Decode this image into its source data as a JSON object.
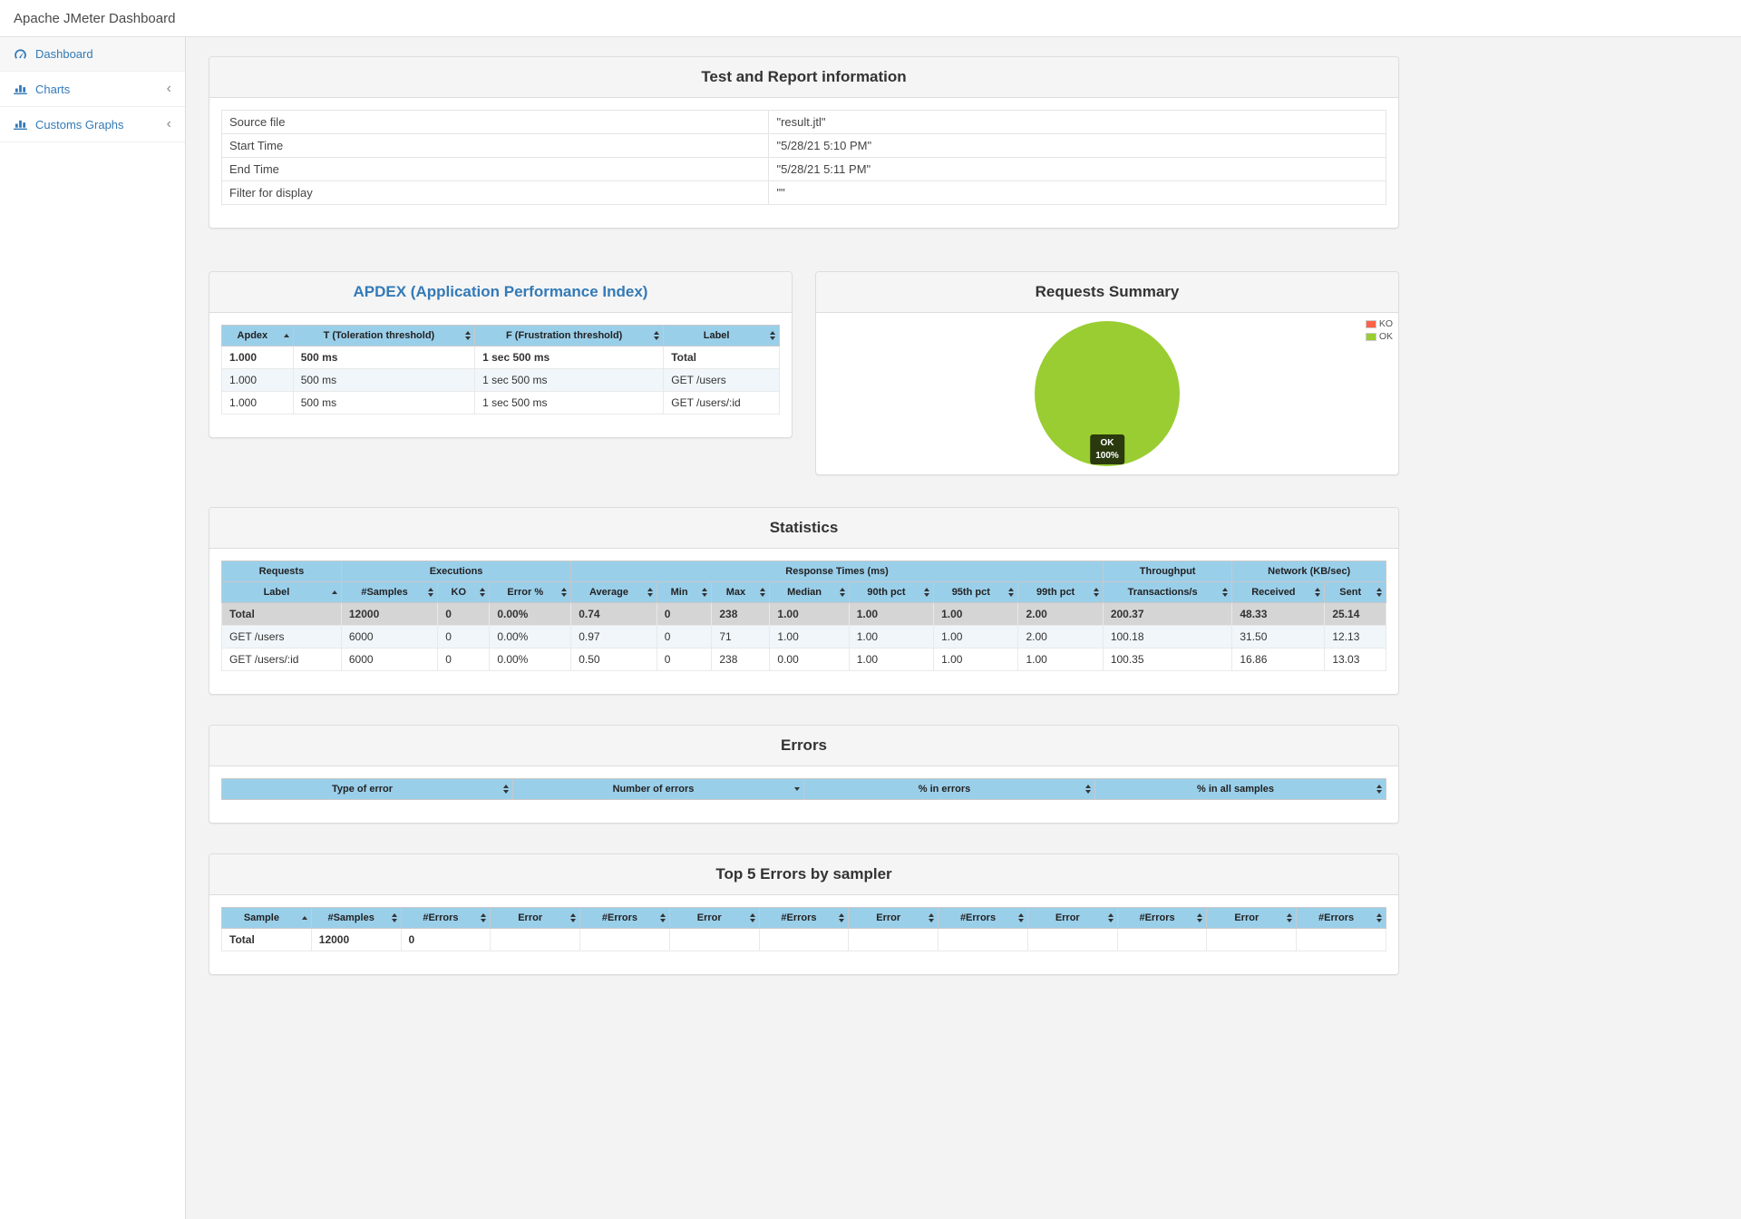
{
  "app": {
    "title": "Apache JMeter Dashboard"
  },
  "sidebar": {
    "items": [
      {
        "label": "Dashboard",
        "icon": "dashboard-icon",
        "active": true
      },
      {
        "label": "Charts",
        "icon": "bar-chart-icon",
        "collapsed": true
      },
      {
        "label": "Customs Graphs",
        "icon": "bar-chart-icon",
        "collapsed": true
      }
    ]
  },
  "test_info": {
    "title": "Test and Report information",
    "rows": [
      [
        "Source file",
        "\"result.jtl\""
      ],
      [
        "Start Time",
        "\"5/28/21 5:10 PM\""
      ],
      [
        "End Time",
        "\"5/28/21 5:11 PM\""
      ],
      [
        "Filter for display",
        "\"\""
      ]
    ]
  },
  "apdex": {
    "title": "APDEX (Application Performance Index)",
    "headers": [
      {
        "label": "Apdex",
        "sort": "asc"
      },
      {
        "label": "T (Toleration threshold)",
        "sort": "both"
      },
      {
        "label": "F (Frustration threshold)",
        "sort": "both"
      },
      {
        "label": "Label",
        "sort": "both"
      }
    ],
    "rows": [
      [
        "1.000",
        "500 ms",
        "1 sec 500 ms",
        "Total"
      ],
      [
        "1.000",
        "500 ms",
        "1 sec 500 ms",
        "GET /users"
      ],
      [
        "1.000",
        "500 ms",
        "1 sec 500 ms",
        "GET /users/:id"
      ]
    ]
  },
  "requests_summary": {
    "title": "Requests Summary",
    "legend": [
      {
        "label": "KO",
        "color": "#FF6347"
      },
      {
        "label": "OK",
        "color": "#9ACD32"
      }
    ],
    "slice_label": {
      "line1": "OK",
      "line2": "100%"
    }
  },
  "chart_data": {
    "type": "pie",
    "title": "Requests Summary",
    "slices": [
      {
        "label": "KO",
        "value": 0,
        "color": "#FF6347"
      },
      {
        "label": "OK",
        "value": 100,
        "color": "#9ACD32"
      }
    ],
    "legend_position": "top-right",
    "annotations": [
      "OK 100%"
    ]
  },
  "statistics": {
    "title": "Statistics",
    "groups": [
      {
        "label": "Requests",
        "span": 1
      },
      {
        "label": "Executions",
        "span": 3
      },
      {
        "label": "Response Times (ms)",
        "span": 7
      },
      {
        "label": "Throughput",
        "span": 1
      },
      {
        "label": "Network (KB/sec)",
        "span": 2
      }
    ],
    "headers": [
      {
        "label": "Label",
        "sort": "asc"
      },
      {
        "label": "#Samples",
        "sort": "both"
      },
      {
        "label": "KO",
        "sort": "both"
      },
      {
        "label": "Error %",
        "sort": "both"
      },
      {
        "label": "Average",
        "sort": "both"
      },
      {
        "label": "Min",
        "sort": "both"
      },
      {
        "label": "Max",
        "sort": "both"
      },
      {
        "label": "Median",
        "sort": "both"
      },
      {
        "label": "90th pct",
        "sort": "both"
      },
      {
        "label": "95th pct",
        "sort": "both"
      },
      {
        "label": "99th pct",
        "sort": "both"
      },
      {
        "label": "Transactions/s",
        "sort": "both"
      },
      {
        "label": "Received",
        "sort": "both"
      },
      {
        "label": "Sent",
        "sort": "both"
      }
    ],
    "rows": [
      [
        "Total",
        "12000",
        "0",
        "0.00%",
        "0.74",
        "0",
        "238",
        "1.00",
        "1.00",
        "1.00",
        "2.00",
        "200.37",
        "48.33",
        "25.14"
      ],
      [
        "GET /users",
        "6000",
        "0",
        "0.00%",
        "0.97",
        "0",
        "71",
        "1.00",
        "1.00",
        "1.00",
        "2.00",
        "100.18",
        "31.50",
        "12.13"
      ],
      [
        "GET /users/:id",
        "6000",
        "0",
        "0.00%",
        "0.50",
        "0",
        "238",
        "0.00",
        "1.00",
        "1.00",
        "1.00",
        "100.35",
        "16.86",
        "13.03"
      ]
    ]
  },
  "errors": {
    "title": "Errors",
    "headers": [
      {
        "label": "Type of error",
        "sort": "both"
      },
      {
        "label": "Number of errors",
        "sort": "desc"
      },
      {
        "label": "% in errors",
        "sort": "both"
      },
      {
        "label": "% in all samples",
        "sort": "both"
      }
    ],
    "rows": []
  },
  "top5_errors": {
    "title": "Top 5 Errors by sampler",
    "headers": [
      {
        "label": "Sample",
        "sort": "asc"
      },
      {
        "label": "#Samples",
        "sort": "both"
      },
      {
        "label": "#Errors",
        "sort": "both"
      },
      {
        "label": "Error",
        "sort": "both"
      },
      {
        "label": "#Errors",
        "sort": "both"
      },
      {
        "label": "Error",
        "sort": "both"
      },
      {
        "label": "#Errors",
        "sort": "both"
      },
      {
        "label": "Error",
        "sort": "both"
      },
      {
        "label": "#Errors",
        "sort": "both"
      },
      {
        "label": "Error",
        "sort": "both"
      },
      {
        "label": "#Errors",
        "sort": "both"
      },
      {
        "label": "Error",
        "sort": "both"
      },
      {
        "label": "#Errors",
        "sort": "both"
      }
    ],
    "rows": [
      [
        "Total",
        "12000",
        "0",
        "",
        "",
        "",
        "",
        "",
        "",
        "",
        "",
        "",
        ""
      ]
    ]
  }
}
